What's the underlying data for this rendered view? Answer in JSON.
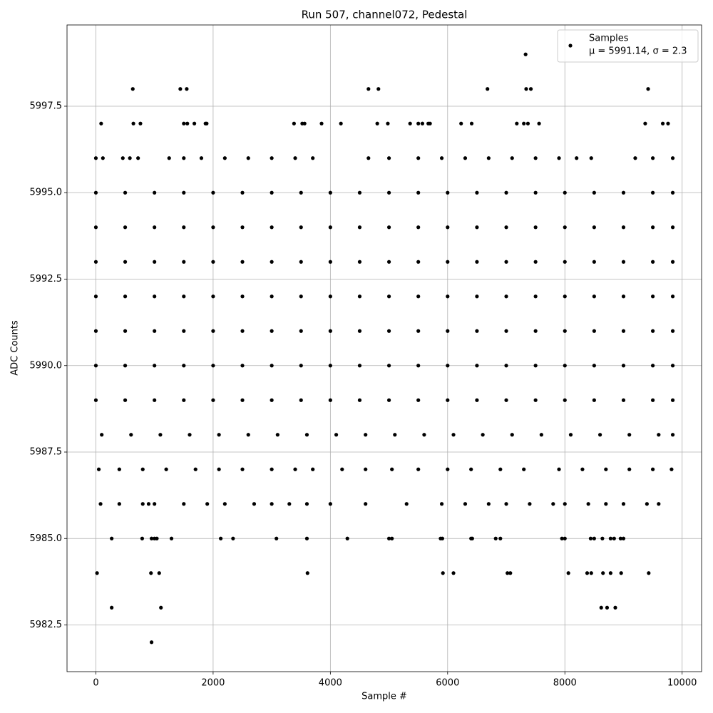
{
  "chart_data": {
    "type": "scatter",
    "title": "Run 507, channel072, Pedestal",
    "x_label": "Sample #",
    "y_label": "ADC Counts",
    "xlim": [
      -492,
      10332
    ],
    "ylim": [
      5981.15,
      5999.85
    ],
    "xticks": [
      0,
      2000,
      4000,
      6000,
      8000,
      10000
    ],
    "yticks": [
      5982.5,
      {
        "value": 5985,
        "label": "5985.0"
      },
      5987.5,
      {
        "value": 5990,
        "label": "5990.0"
      },
      5992.5,
      {
        "value": 5995,
        "label": "5995.0"
      },
      5997.5
    ],
    "grid": true,
    "legend": "upper right",
    "legend_stats": "μ = 5991.14, σ = 2.3",
    "series": [
      {
        "name": "Samples",
        "color": "#000000",
        "x": [
          7330,
          630,
          1440,
          1550,
          4650,
          4820,
          6680,
          7340,
          7420,
          9420,
          90,
          640,
          760,
          1500,
          1560,
          1680,
          1870,
          1890,
          3380,
          3520,
          3560,
          3850,
          4180,
          4800,
          4980,
          5360,
          5500,
          5570,
          5670,
          5700,
          6230,
          6410,
          7180,
          7300,
          7370,
          7560,
          9370,
          9670,
          9760,
          0,
          120,
          460,
          580,
          720,
          1250,
          1500,
          1800,
          2200,
          2600,
          3000,
          3400,
          3700,
          4650,
          5000,
          5500,
          5900,
          6300,
          6700,
          7100,
          7500,
          7900,
          8200,
          8450,
          9200,
          9500,
          9840,
          0,
          500,
          1000,
          1500,
          2000,
          2500,
          3000,
          3500,
          4000,
          4500,
          5000,
          5500,
          6000,
          6500,
          7000,
          7500,
          8000,
          8500,
          9000,
          9500,
          9840,
          0,
          500,
          1000,
          1500,
          2000,
          2500,
          3000,
          3500,
          4000,
          4500,
          5000,
          5500,
          6000,
          6500,
          7000,
          7500,
          8000,
          8500,
          9000,
          9500,
          9840,
          0,
          500,
          1000,
          1500,
          2000,
          2500,
          3000,
          3500,
          4000,
          4500,
          5000,
          5500,
          6000,
          6500,
          7000,
          7500,
          8000,
          8500,
          9000,
          9500,
          9840,
          0,
          500,
          1000,
          1500,
          2000,
          2500,
          3000,
          3500,
          4000,
          4500,
          5000,
          5500,
          6000,
          6500,
          7000,
          7500,
          8000,
          8500,
          9000,
          9500,
          9840,
          0,
          500,
          1000,
          1500,
          2000,
          2500,
          3000,
          3500,
          4000,
          4500,
          5000,
          5500,
          6000,
          6500,
          7000,
          7500,
          8000,
          8500,
          9000,
          9500,
          9840,
          0,
          500,
          1000,
          1500,
          2000,
          2500,
          3000,
          3500,
          4000,
          4500,
          5000,
          5500,
          6000,
          6500,
          7000,
          7500,
          8000,
          8500,
          9000,
          9500,
          9840,
          0,
          500,
          1000,
          1500,
          2000,
          2500,
          3000,
          3500,
          4000,
          4500,
          5000,
          5500,
          6000,
          6500,
          7000,
          7500,
          8000,
          8500,
          9000,
          9500,
          9840,
          100,
          600,
          1100,
          1600,
          2100,
          2600,
          3100,
          3600,
          4100,
          4600,
          5100,
          5600,
          6100,
          6600,
          7100,
          7600,
          8100,
          8600,
          9100,
          9600,
          9840,
          50,
          400,
          800,
          1200,
          1700,
          2100,
          2500,
          3000,
          3400,
          3700,
          4200,
          4600,
          5050,
          5500,
          6000,
          6400,
          6900,
          7300,
          7900,
          8300,
          8700,
          9100,
          9500,
          9820,
          80,
          400,
          800,
          900,
          1000,
          1500,
          1900,
          2200,
          2700,
          3000,
          3300,
          3600,
          4000,
          4600,
          5300,
          5900,
          6300,
          6700,
          7000,
          7400,
          7800,
          8000,
          8400,
          8700,
          9000,
          9400,
          9600,
          270,
          790,
          950,
          1000,
          1040,
          1290,
          2130,
          2340,
          3080,
          3600,
          4290,
          5000,
          5050,
          5880,
          5910,
          6400,
          6420,
          6820,
          6900,
          7950,
          8000,
          8440,
          8500,
          8640,
          8780,
          8840,
          8950,
          9000,
          20,
          940,
          1080,
          3610,
          5920,
          6100,
          7020,
          7070,
          8060,
          8380,
          8450,
          8650,
          8780,
          8960,
          9430,
          270,
          1110,
          8620,
          8720,
          8860,
          950
        ],
        "values": [
          5999,
          5998,
          5998,
          5998,
          5998,
          5998,
          5998,
          5998,
          5998,
          5998,
          5997,
          5997,
          5997,
          5997,
          5997,
          5997,
          5997,
          5997,
          5997,
          5997,
          5997,
          5997,
          5997,
          5997,
          5997,
          5997,
          5997,
          5997,
          5997,
          5997,
          5997,
          5997,
          5997,
          5997,
          5997,
          5997,
          5997,
          5997,
          5997,
          5996,
          5996,
          5996,
          5996,
          5996,
          5996,
          5996,
          5996,
          5996,
          5996,
          5996,
          5996,
          5996,
          5996,
          5996,
          5996,
          5996,
          5996,
          5996,
          5996,
          5996,
          5996,
          5996,
          5996,
          5996,
          5996,
          5996,
          5995,
          5995,
          5995,
          5995,
          5995,
          5995,
          5995,
          5995,
          5995,
          5995,
          5995,
          5995,
          5995,
          5995,
          5995,
          5995,
          5995,
          5995,
          5995,
          5995,
          5995,
          5994,
          5994,
          5994,
          5994,
          5994,
          5994,
          5994,
          5994,
          5994,
          5994,
          5994,
          5994,
          5994,
          5994,
          5994,
          5994,
          5994,
          5994,
          5994,
          5994,
          5994,
          5993,
          5993,
          5993,
          5993,
          5993,
          5993,
          5993,
          5993,
          5993,
          5993,
          5993,
          5993,
          5993,
          5993,
          5993,
          5993,
          5993,
          5993,
          5993,
          5993,
          5993,
          5992,
          5992,
          5992,
          5992,
          5992,
          5992,
          5992,
          5992,
          5992,
          5992,
          5992,
          5992,
          5992,
          5992,
          5992,
          5992,
          5992,
          5992,
          5992,
          5992,
          5992,
          5991,
          5991,
          5991,
          5991,
          5991,
          5991,
          5991,
          5991,
          5991,
          5991,
          5991,
          5991,
          5991,
          5991,
          5991,
          5991,
          5991,
          5991,
          5991,
          5991,
          5991,
          5990,
          5990,
          5990,
          5990,
          5990,
          5990,
          5990,
          5990,
          5990,
          5990,
          5990,
          5990,
          5990,
          5990,
          5990,
          5990,
          5990,
          5990,
          5990,
          5990,
          5990,
          5989,
          5989,
          5989,
          5989,
          5989,
          5989,
          5989,
          5989,
          5989,
          5989,
          5989,
          5989,
          5989,
          5989,
          5989,
          5989,
          5989,
          5989,
          5989,
          5989,
          5989,
          5988,
          5988,
          5988,
          5988,
          5988,
          5988,
          5988,
          5988,
          5988,
          5988,
          5988,
          5988,
          5988,
          5988,
          5988,
          5988,
          5988,
          5988,
          5988,
          5988,
          5988,
          5987,
          5987,
          5987,
          5987,
          5987,
          5987,
          5987,
          5987,
          5987,
          5987,
          5987,
          5987,
          5987,
          5987,
          5987,
          5987,
          5987,
          5987,
          5987,
          5987,
          5987,
          5987,
          5987,
          5987,
          5986,
          5986,
          5986,
          5986,
          5986,
          5986,
          5986,
          5986,
          5986,
          5986,
          5986,
          5986,
          5986,
          5986,
          5986,
          5986,
          5986,
          5986,
          5986,
          5986,
          5986,
          5986,
          5986,
          5986,
          5986,
          5986,
          5986,
          5985,
          5985,
          5985,
          5985,
          5985,
          5985,
          5985,
          5985,
          5985,
          5985,
          5985,
          5985,
          5985,
          5985,
          5985,
          5985,
          5985,
          5985,
          5985,
          5985,
          5985,
          5985,
          5985,
          5985,
          5985,
          5985,
          5985,
          5985,
          5984,
          5984,
          5984,
          5984,
          5984,
          5984,
          5984,
          5984,
          5984,
          5984,
          5984,
          5984,
          5984,
          5984,
          5984,
          5983,
          5983,
          5983,
          5983,
          5983,
          5982
        ]
      }
    ]
  }
}
